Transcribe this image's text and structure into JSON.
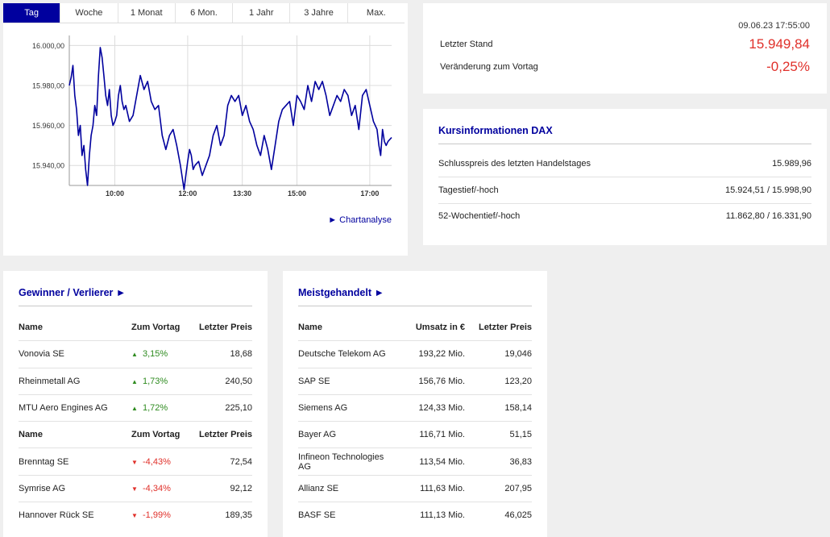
{
  "tabs": [
    "Tag",
    "Woche",
    "1 Monat",
    "6 Mon.",
    "1 Jahr",
    "3 Jahre",
    "Max."
  ],
  "active_tab": 0,
  "chart_link": "Chartanalyse",
  "chart_data": {
    "type": "line",
    "series_color": "#00009e",
    "x_range": [
      8.75,
      17.6
    ],
    "ylim": [
      15930,
      16005
    ],
    "grid": true,
    "yticks": [
      16000,
      15980,
      15960,
      15940
    ],
    "ytick_labels": [
      "16.000,00",
      "15.980,00",
      "15.960,00",
      "15.940,00"
    ],
    "xticks": [
      10.0,
      12.0,
      13.5,
      15.0,
      17.0
    ],
    "xtick_labels": [
      "10:00",
      "12:00",
      "13:30",
      "15:00",
      "17:00"
    ],
    "x": [
      8.75,
      8.8,
      8.85,
      8.9,
      8.95,
      9.0,
      9.05,
      9.1,
      9.15,
      9.2,
      9.25,
      9.3,
      9.35,
      9.4,
      9.45,
      9.5,
      9.55,
      9.6,
      9.65,
      9.7,
      9.75,
      9.8,
      9.85,
      9.9,
      9.95,
      10.0,
      10.05,
      10.1,
      10.15,
      10.2,
      10.25,
      10.3,
      10.4,
      10.5,
      10.6,
      10.7,
      10.8,
      10.9,
      11.0,
      11.1,
      11.2,
      11.3,
      11.4,
      11.5,
      11.6,
      11.7,
      11.8,
      11.9,
      11.95,
      12.0,
      12.05,
      12.1,
      12.15,
      12.2,
      12.3,
      12.4,
      12.5,
      12.6,
      12.7,
      12.8,
      12.9,
      13.0,
      13.1,
      13.2,
      13.3,
      13.4,
      13.5,
      13.6,
      13.7,
      13.8,
      13.9,
      14.0,
      14.1,
      14.2,
      14.3,
      14.4,
      14.5,
      14.6,
      14.7,
      14.8,
      14.9,
      15.0,
      15.1,
      15.2,
      15.3,
      15.4,
      15.5,
      15.6,
      15.7,
      15.8,
      15.9,
      16.0,
      16.1,
      16.2,
      16.3,
      16.4,
      16.5,
      16.6,
      16.7,
      16.8,
      16.9,
      17.0,
      17.1,
      17.2,
      17.25,
      17.3,
      17.35,
      17.4,
      17.45,
      17.5,
      17.6
    ],
    "y": [
      15980,
      15984,
      15990,
      15975,
      15968,
      15955,
      15960,
      15945,
      15950,
      15938,
      15930,
      15945,
      15955,
      15960,
      15970,
      15965,
      15985,
      15999,
      15994,
      15985,
      15975,
      15970,
      15978,
      15965,
      15960,
      15962,
      15965,
      15975,
      15980,
      15972,
      15968,
      15970,
      15962,
      15965,
      15975,
      15985,
      15978,
      15982,
      15972,
      15968,
      15970,
      15955,
      15948,
      15955,
      15958,
      15950,
      15940,
      15928,
      15935,
      15942,
      15948,
      15945,
      15938,
      15940,
      15942,
      15935,
      15940,
      15945,
      15955,
      15960,
      15950,
      15955,
      15970,
      15975,
      15972,
      15975,
      15965,
      15970,
      15962,
      15958,
      15950,
      15945,
      15955,
      15948,
      15938,
      15950,
      15962,
      15968,
      15970,
      15972,
      15960,
      15975,
      15972,
      15968,
      15980,
      15972,
      15982,
      15978,
      15982,
      15975,
      15965,
      15970,
      15975,
      15972,
      15978,
      15975,
      15965,
      15970,
      15958,
      15975,
      15978,
      15970,
      15962,
      15958,
      15950,
      15945,
      15958,
      15952,
      15950,
      15952,
      15954
    ]
  },
  "quote": {
    "timestamp": "09.06.23 17:55:00",
    "last_label": "Letzter Stand",
    "last_value": "15.949,84",
    "change_label": "Veränderung zum Vortag",
    "change_value": "-0,25%"
  },
  "info": {
    "title": "Kursinformationen DAX",
    "rows": [
      {
        "label": "Schlusspreis des letzten Handelstages",
        "value": "15.989,96"
      },
      {
        "label": "Tagestief/-hoch",
        "value": "15.924,51 / 15.998,90"
      },
      {
        "label": "52-Wochentief/-hoch",
        "value": "11.862,80 / 16.331,90"
      }
    ]
  },
  "gainers_losers": {
    "title": "Gewinner / Verlierer ►",
    "headers": {
      "name": "Name",
      "change": "Zum Vortag",
      "price": "Letzter Preis"
    },
    "gainers": [
      {
        "name": "Vonovia SE",
        "change": "3,15%",
        "price": "18,68"
      },
      {
        "name": "Rheinmetall AG",
        "change": "1,73%",
        "price": "240,50"
      },
      {
        "name": "MTU Aero Engines AG",
        "change": "1,72%",
        "price": "225,10"
      }
    ],
    "losers": [
      {
        "name": "Brenntag SE",
        "change": "-4,43%",
        "price": "72,54"
      },
      {
        "name": "Symrise AG",
        "change": "-4,34%",
        "price": "92,12"
      },
      {
        "name": "Hannover Rück SE",
        "change": "-1,99%",
        "price": "189,35"
      }
    ],
    "up_glyph": "▲",
    "down_glyph": "▼"
  },
  "most_traded": {
    "title": "Meistgehandelt ►",
    "headers": {
      "name": "Name",
      "volume": "Umsatz in €",
      "price": "Letzter Preis"
    },
    "rows": [
      {
        "name": "Deutsche Telekom AG",
        "volume": "193,22 Mio.",
        "price": "19,046"
      },
      {
        "name": "SAP SE",
        "volume": "156,76 Mio.",
        "price": "123,20"
      },
      {
        "name": "Siemens AG",
        "volume": "124,33 Mio.",
        "price": "158,14"
      },
      {
        "name": "Bayer AG",
        "volume": "116,71 Mio.",
        "price": "51,15"
      },
      {
        "name": "Infineon Technologies AG",
        "volume": "113,54 Mio.",
        "price": "36,83"
      },
      {
        "name": "Allianz SE",
        "volume": "111,63 Mio.",
        "price": "207,95"
      },
      {
        "name": "BASF SE",
        "volume": "111,13 Mio.",
        "price": "46,025"
      }
    ]
  }
}
